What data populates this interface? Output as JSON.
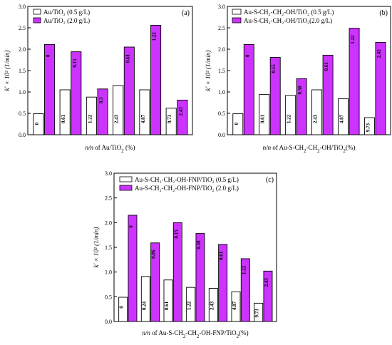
{
  "colors": {
    "series_low": "#ffffff",
    "series_high": "#cc33ff",
    "axis": "#000000"
  },
  "chart_data": [
    {
      "type": "bar",
      "panel_label": "(a)",
      "xlabel_parts": {
        "italic": "n/n",
        "rest": " of Au/TiO",
        "sub": "2",
        "suffix": " (%)"
      },
      "ylabel": "k' × 10² (1/min)",
      "ylim": [
        0,
        3.0
      ],
      "ytick_labels": [
        "0.0",
        "0.5",
        "1.0",
        "1.5",
        "2.0",
        "2.5",
        "3.0"
      ],
      "legend_labels": [
        "Au/TiO₂ (0.5 g/L)",
        "Au/TiO₂ (2.0 g/L)"
      ],
      "categories": [
        "0",
        "0.61",
        "1.22",
        "2.43",
        "4.87",
        "9.73"
      ],
      "high_bar_labels": [
        "0",
        "0.15",
        "0.3",
        "0.61",
        "1.22",
        "2.43"
      ],
      "series": [
        {
          "values": [
            0.49,
            1.05,
            0.88,
            1.15,
            1.05,
            0.62
          ]
        },
        {
          "values": [
            2.11,
            1.94,
            1.07,
            2.05,
            2.56,
            0.81
          ]
        }
      ]
    },
    {
      "type": "bar",
      "panel_label": "(b)",
      "xlabel_parts": {
        "italic": "n/n",
        "rest": " of Au-S-CH",
        "sub": "2",
        "rest2": "-CH",
        "sub2": "2",
        "rest3": "-OH/TiO",
        "sub3": "2",
        "suffix": "(%)"
      },
      "ylabel": "k' × 10² (1/min)",
      "ylim": [
        0,
        3.0
      ],
      "ytick_labels": [
        "0.0",
        "0.5",
        "1.0",
        "1.5",
        "2.0",
        "2.5",
        "3.0"
      ],
      "legend_labels": [
        "Au-S-CH₂-CH₂-OH/TiO₂ (0.5 g/L)",
        "Au-S-CH₂-CH₂-OH/TiO₂(2.0 g/L)"
      ],
      "categories": [
        "0",
        "0.61",
        "1.22",
        "2.43",
        "4.87",
        "9.73"
      ],
      "high_bar_labels": [
        "0",
        "0.15",
        "0.30",
        "0.61",
        "1.22",
        "2.43"
      ],
      "series": [
        {
          "values": [
            0.49,
            0.94,
            0.92,
            1.05,
            0.84,
            0.4
          ]
        },
        {
          "values": [
            2.11,
            1.81,
            1.31,
            1.86,
            2.49,
            2.16
          ]
        }
      ]
    },
    {
      "type": "bar",
      "panel_label": "(c)",
      "xlabel_parts": {
        "italic": "n/n",
        "rest": " of Au-S-CH",
        "sub": "2",
        "rest2": "-CH",
        "sub2": "2",
        "rest3": "-OH-FNP/TiO",
        "sub3": "2",
        "suffix": "(%)"
      },
      "ylabel": "k' × 10² (1/min)",
      "ylim": [
        0,
        3.0
      ],
      "ytick_labels": [
        "0.0",
        "0.5",
        "1.0",
        "1.5",
        "2.0",
        "2.5",
        "3.0"
      ],
      "legend_labels": [
        "Au-S-CH₂-CH₂-OH-FNP/TiO₂ (0.5 g/L)",
        "Au-S-CH₂-CH₂-OH-FNP/TiO₂ (2.0 g/L)"
      ],
      "categories": [
        "0",
        "0.24",
        "0.61",
        "1.22",
        "2.43",
        "4.87",
        "9.73"
      ],
      "high_bar_labels": [
        "0",
        "0.06",
        "0.15",
        "0.30",
        "0.61",
        "1.22",
        "2.43"
      ],
      "series": [
        {
          "values": [
            0.49,
            0.91,
            0.84,
            0.69,
            0.67,
            0.6,
            0.37
          ]
        },
        {
          "values": [
            2.15,
            1.59,
            2.0,
            1.78,
            1.56,
            1.27,
            1.02
          ]
        }
      ]
    }
  ]
}
